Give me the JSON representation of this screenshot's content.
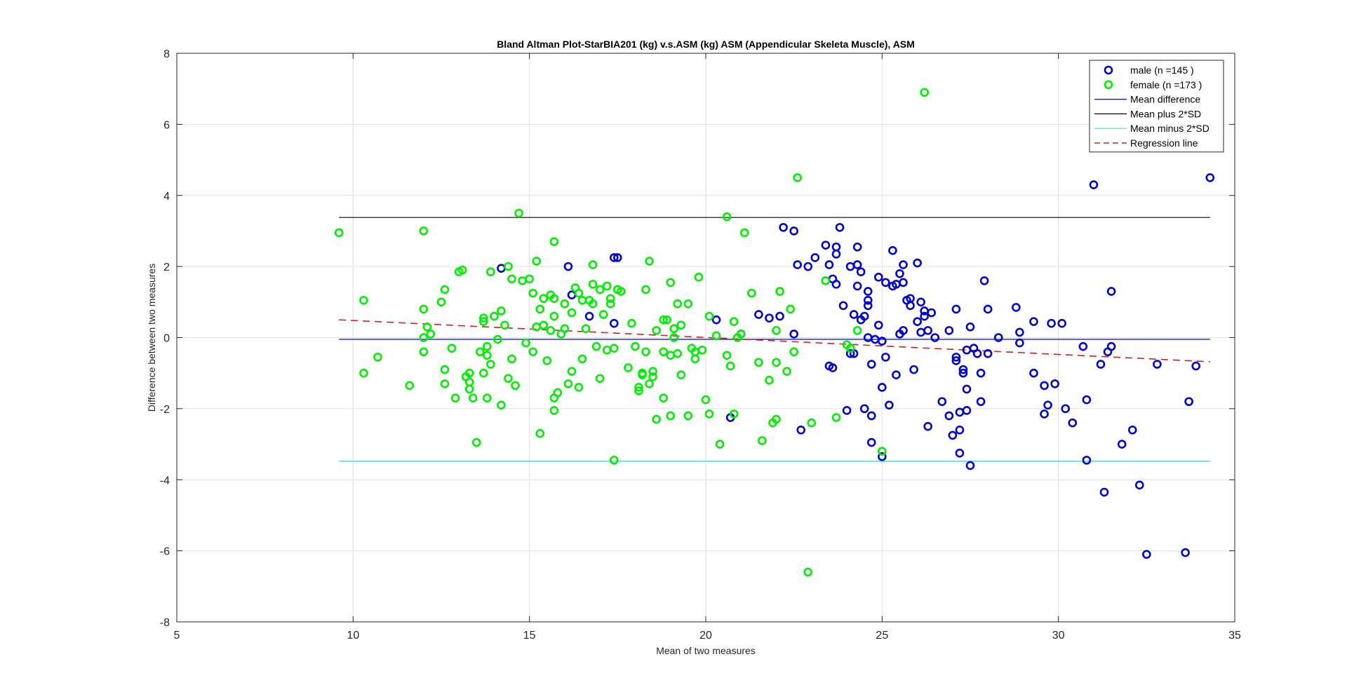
{
  "chart_data": {
    "type": "scatter",
    "title": "Bland Altman Plot-StarBIA201 (kg) v.s.ASM (kg) ASM (Appendicular Skeleta Muscle), ASM",
    "xlabel": "Mean of two measures",
    "ylabel": "Difference between two measures",
    "xlim": [
      5,
      35
    ],
    "ylim": [
      -8,
      8
    ],
    "xticks": [
      "5",
      "10",
      "15",
      "20",
      "25",
      "30",
      "35"
    ],
    "yticks": [
      "-8",
      "-6",
      "-4",
      "-2",
      "0",
      "2",
      "4",
      "6",
      "8"
    ],
    "grid": true,
    "legend_position": "top-right",
    "colors": {
      "male": "#0000cc",
      "female": "#00ee00",
      "mean_difference": "#0000ff",
      "mean_plus_2sd": "#000000",
      "mean_minus_2sd": "#33dddd",
      "regression": "#cc2222"
    },
    "legend": [
      {
        "key": "male",
        "label": "male (n =145 )",
        "kind": "marker"
      },
      {
        "key": "female",
        "label": "female (n =173 )",
        "kind": "marker"
      },
      {
        "key": "mean_difference",
        "label": "Mean difference",
        "kind": "line"
      },
      {
        "key": "mean_plus_2sd",
        "label": "Mean plus 2*SD",
        "kind": "line"
      },
      {
        "key": "mean_minus_2sd",
        "label": "Mean minus 2*SD",
        "kind": "line"
      },
      {
        "key": "regression",
        "label": "Regression line",
        "kind": "dashed"
      }
    ],
    "lines": {
      "x_range": [
        9.6,
        34.3
      ],
      "mean_difference": -0.05,
      "mean_plus_2sd": 3.38,
      "mean_minus_2sd": -3.48,
      "regression": [
        [
          9.6,
          0.5
        ],
        [
          34.3,
          -0.68
        ]
      ]
    },
    "series": [
      {
        "name": "male (n =145 )",
        "points": [
          [
            14.2,
            1.95
          ],
          [
            16.1,
            2.0
          ],
          [
            16.2,
            1.2
          ],
          [
            16.7,
            0.6
          ],
          [
            17.4,
            2.25
          ],
          [
            17.5,
            2.25
          ],
          [
            17.4,
            0.4
          ],
          [
            20.3,
            0.5
          ],
          [
            20.7,
            -2.25
          ],
          [
            21.0,
            0.1
          ],
          [
            21.5,
            0.65
          ],
          [
            21.8,
            0.55
          ],
          [
            22.1,
            0.6
          ],
          [
            22.2,
            3.1
          ],
          [
            22.5,
            3.0
          ],
          [
            22.5,
            0.1
          ],
          [
            22.6,
            2.05
          ],
          [
            22.7,
            -2.6
          ],
          [
            22.9,
            2.0
          ],
          [
            23.1,
            2.25
          ],
          [
            23.4,
            2.6
          ],
          [
            23.5,
            2.05
          ],
          [
            23.5,
            -0.8
          ],
          [
            23.6,
            -0.85
          ],
          [
            23.6,
            1.65
          ],
          [
            23.7,
            2.55
          ],
          [
            23.7,
            2.35
          ],
          [
            23.7,
            1.5
          ],
          [
            23.8,
            3.1
          ],
          [
            23.9,
            0.9
          ],
          [
            24.0,
            -2.05
          ],
          [
            24.1,
            -0.45
          ],
          [
            24.1,
            2.0
          ],
          [
            24.2,
            -0.45
          ],
          [
            24.2,
            0.65
          ],
          [
            24.3,
            2.55
          ],
          [
            24.3,
            1.45
          ],
          [
            24.3,
            2.05
          ],
          [
            24.4,
            1.85
          ],
          [
            24.4,
            0.5
          ],
          [
            24.5,
            -2.0
          ],
          [
            24.5,
            0.6
          ],
          [
            24.6,
            1.05
          ],
          [
            24.6,
            0.9
          ],
          [
            24.6,
            1.3
          ],
          [
            24.6,
            0.0
          ],
          [
            24.7,
            -2.95
          ],
          [
            24.7,
            -2.2
          ],
          [
            24.7,
            -0.75
          ],
          [
            24.8,
            -0.05
          ],
          [
            24.9,
            1.7
          ],
          [
            24.9,
            0.35
          ],
          [
            25.0,
            -3.35
          ],
          [
            25.0,
            -0.1
          ],
          [
            25.0,
            -1.4
          ],
          [
            25.1,
            1.55
          ],
          [
            25.1,
            -0.55
          ],
          [
            25.2,
            -1.9
          ],
          [
            25.3,
            2.45
          ],
          [
            25.3,
            1.45
          ],
          [
            25.4,
            1.5
          ],
          [
            25.4,
            -1.05
          ],
          [
            25.5,
            0.1
          ],
          [
            25.5,
            1.8
          ],
          [
            25.6,
            2.05
          ],
          [
            25.6,
            1.55
          ],
          [
            25.6,
            0.2
          ],
          [
            25.7,
            1.05
          ],
          [
            25.8,
            1.1
          ],
          [
            25.8,
            0.9
          ],
          [
            25.9,
            -0.9
          ],
          [
            26.0,
            0.45
          ],
          [
            26.0,
            2.1
          ],
          [
            26.1,
            0.15
          ],
          [
            26.1,
            1.0
          ],
          [
            26.2,
            0.6
          ],
          [
            26.2,
            0.75
          ],
          [
            26.3,
            -2.5
          ],
          [
            26.3,
            0.2
          ],
          [
            26.4,
            0.7
          ],
          [
            26.5,
            0.0
          ],
          [
            26.7,
            -1.8
          ],
          [
            26.9,
            -2.2
          ],
          [
            26.9,
            0.2
          ],
          [
            27.0,
            -2.75
          ],
          [
            27.1,
            -0.55
          ],
          [
            27.1,
            0.8
          ],
          [
            27.1,
            -0.65
          ],
          [
            27.2,
            -2.6
          ],
          [
            27.2,
            -3.25
          ],
          [
            27.2,
            -2.1
          ],
          [
            27.3,
            -0.9
          ],
          [
            27.3,
            -1.0
          ],
          [
            27.4,
            -2.05
          ],
          [
            27.4,
            -1.45
          ],
          [
            27.4,
            -0.35
          ],
          [
            27.5,
            -3.6
          ],
          [
            27.5,
            0.3
          ],
          [
            27.6,
            -0.3
          ],
          [
            27.7,
            -0.45
          ],
          [
            27.8,
            -1.8
          ],
          [
            27.8,
            -1.0
          ],
          [
            27.9,
            1.6
          ],
          [
            28.0,
            0.8
          ],
          [
            28.0,
            -0.45
          ],
          [
            28.3,
            0.0
          ],
          [
            28.8,
            0.85
          ],
          [
            28.9,
            0.15
          ],
          [
            28.9,
            -0.15
          ],
          [
            29.3,
            -1.0
          ],
          [
            29.3,
            0.45
          ],
          [
            29.6,
            -1.35
          ],
          [
            29.6,
            -2.15
          ],
          [
            29.7,
            -1.9
          ],
          [
            29.8,
            0.4
          ],
          [
            29.9,
            -1.3
          ],
          [
            30.1,
            0.4
          ],
          [
            30.2,
            -2.0
          ],
          [
            30.4,
            -2.4
          ],
          [
            30.7,
            -0.25
          ],
          [
            30.8,
            -1.75
          ],
          [
            30.8,
            -3.45
          ],
          [
            31.0,
            4.3
          ],
          [
            31.2,
            -0.75
          ],
          [
            31.3,
            -4.35
          ],
          [
            31.4,
            -0.4
          ],
          [
            31.5,
            -0.25
          ],
          [
            31.5,
            1.3
          ],
          [
            31.8,
            -3.0
          ],
          [
            32.1,
            -2.6
          ],
          [
            32.3,
            -4.15
          ],
          [
            32.5,
            -6.1
          ],
          [
            32.8,
            -0.75
          ],
          [
            33.6,
            -6.05
          ],
          [
            33.7,
            -1.8
          ],
          [
            33.9,
            -0.8
          ],
          [
            34.3,
            4.5
          ]
        ]
      },
      {
        "name": "female (n =173 )",
        "points": [
          [
            9.6,
            2.95
          ],
          [
            10.3,
            1.05
          ],
          [
            10.3,
            -1.0
          ],
          [
            10.7,
            -0.55
          ],
          [
            11.6,
            -1.35
          ],
          [
            12.0,
            0.8
          ],
          [
            12.0,
            -0.4
          ],
          [
            12.0,
            3.0
          ],
          [
            12.0,
            0.0
          ],
          [
            12.1,
            0.3
          ],
          [
            12.2,
            0.1
          ],
          [
            12.5,
            1.0
          ],
          [
            12.6,
            -0.9
          ],
          [
            12.6,
            -1.3
          ],
          [
            12.6,
            1.35
          ],
          [
            12.8,
            -0.3
          ],
          [
            12.9,
            -1.7
          ],
          [
            13.0,
            1.85
          ],
          [
            13.1,
            1.9
          ],
          [
            13.2,
            -1.1
          ],
          [
            13.3,
            -1.0
          ],
          [
            13.3,
            -1.25
          ],
          [
            13.3,
            -1.45
          ],
          [
            13.4,
            -1.7
          ],
          [
            13.5,
            -2.95
          ],
          [
            13.6,
            -0.4
          ],
          [
            13.7,
            0.45
          ],
          [
            13.7,
            0.55
          ],
          [
            13.7,
            -1.0
          ],
          [
            13.8,
            -1.7
          ],
          [
            13.8,
            -0.25
          ],
          [
            13.8,
            -0.5
          ],
          [
            13.9,
            1.85
          ],
          [
            13.9,
            -0.75
          ],
          [
            14.0,
            0.6
          ],
          [
            14.1,
            -0.05
          ],
          [
            14.2,
            0.75
          ],
          [
            14.2,
            -1.9
          ],
          [
            14.3,
            0.35
          ],
          [
            14.4,
            -1.15
          ],
          [
            14.4,
            2.0
          ],
          [
            14.5,
            -0.6
          ],
          [
            14.5,
            1.65
          ],
          [
            14.6,
            -1.35
          ],
          [
            14.7,
            3.5
          ],
          [
            14.8,
            1.6
          ],
          [
            14.9,
            -0.15
          ],
          [
            15.0,
            1.65
          ],
          [
            15.1,
            1.25
          ],
          [
            15.1,
            -0.4
          ],
          [
            15.2,
            2.15
          ],
          [
            15.2,
            0.3
          ],
          [
            15.3,
            0.8
          ],
          [
            15.3,
            -2.7
          ],
          [
            15.4,
            0.35
          ],
          [
            15.4,
            1.1
          ],
          [
            15.5,
            -0.65
          ],
          [
            15.6,
            1.2
          ],
          [
            15.6,
            0.2
          ],
          [
            15.7,
            2.7
          ],
          [
            15.7,
            1.1
          ],
          [
            15.7,
            0.6
          ],
          [
            15.7,
            -1.7
          ],
          [
            15.7,
            -2.05
          ],
          [
            15.8,
            -1.55
          ],
          [
            15.9,
            0.1
          ],
          [
            16.0,
            0.25
          ],
          [
            16.0,
            0.95
          ],
          [
            16.1,
            -1.3
          ],
          [
            16.2,
            0.7
          ],
          [
            16.2,
            -0.95
          ],
          [
            16.3,
            1.4
          ],
          [
            16.4,
            1.25
          ],
          [
            16.4,
            -1.4
          ],
          [
            16.5,
            1.05
          ],
          [
            16.5,
            -0.6
          ],
          [
            16.6,
            0.25
          ],
          [
            16.7,
            1.05
          ],
          [
            16.8,
            1.5
          ],
          [
            16.8,
            2.05
          ],
          [
            16.8,
            0.95
          ],
          [
            16.9,
            -0.25
          ],
          [
            17.0,
            1.35
          ],
          [
            17.0,
            -1.15
          ],
          [
            17.1,
            0.65
          ],
          [
            17.2,
            1.45
          ],
          [
            17.2,
            -0.35
          ],
          [
            17.3,
            1.1
          ],
          [
            17.3,
            0.95
          ],
          [
            17.4,
            -0.3
          ],
          [
            17.4,
            -3.45
          ],
          [
            17.5,
            1.35
          ],
          [
            17.6,
            1.3
          ],
          [
            17.8,
            -0.85
          ],
          [
            17.9,
            0.4
          ],
          [
            18.0,
            -0.25
          ],
          [
            18.1,
            -1.4
          ],
          [
            18.1,
            -1.5
          ],
          [
            18.2,
            -1.0
          ],
          [
            18.2,
            -1.05
          ],
          [
            18.3,
            1.35
          ],
          [
            18.3,
            -0.4
          ],
          [
            18.4,
            2.15
          ],
          [
            18.4,
            -1.3
          ],
          [
            18.5,
            -1.1
          ],
          [
            18.5,
            -0.95
          ],
          [
            18.6,
            0.2
          ],
          [
            18.6,
            -2.3
          ],
          [
            18.8,
            0.5
          ],
          [
            18.8,
            -0.4
          ],
          [
            18.8,
            -1.7
          ],
          [
            18.9,
            0.5
          ],
          [
            19.0,
            -0.5
          ],
          [
            19.0,
            1.55
          ],
          [
            19.0,
            -2.2
          ],
          [
            19.1,
            0.0
          ],
          [
            19.1,
            0.25
          ],
          [
            19.2,
            -0.45
          ],
          [
            19.2,
            0.95
          ],
          [
            19.3,
            0.35
          ],
          [
            19.3,
            -1.05
          ],
          [
            19.5,
            -2.2
          ],
          [
            19.5,
            0.95
          ],
          [
            19.6,
            -0.3
          ],
          [
            19.7,
            -0.4
          ],
          [
            19.7,
            -0.6
          ],
          [
            19.8,
            1.7
          ],
          [
            19.9,
            -0.35
          ],
          [
            20.0,
            -1.75
          ],
          [
            20.1,
            0.6
          ],
          [
            20.1,
            -2.15
          ],
          [
            20.3,
            0.05
          ],
          [
            20.4,
            -3.0
          ],
          [
            20.6,
            3.4
          ],
          [
            20.6,
            -0.5
          ],
          [
            20.7,
            -0.8
          ],
          [
            20.8,
            0.45
          ],
          [
            20.8,
            -2.15
          ],
          [
            20.9,
            0.0
          ],
          [
            21.0,
            0.1
          ],
          [
            21.1,
            2.95
          ],
          [
            21.3,
            1.25
          ],
          [
            21.5,
            -0.7
          ],
          [
            21.6,
            -2.9
          ],
          [
            21.8,
            -1.2
          ],
          [
            21.9,
            -2.4
          ],
          [
            22.0,
            0.2
          ],
          [
            22.0,
            -2.3
          ],
          [
            22.0,
            -0.7
          ],
          [
            22.1,
            1.3
          ],
          [
            22.3,
            -0.95
          ],
          [
            22.4,
            0.8
          ],
          [
            22.5,
            -0.4
          ],
          [
            22.6,
            4.5
          ],
          [
            22.9,
            -6.6
          ],
          [
            23.0,
            -2.4
          ],
          [
            23.4,
            1.6
          ],
          [
            23.7,
            -2.25
          ],
          [
            24.0,
            -0.2
          ],
          [
            24.1,
            -0.3
          ],
          [
            24.3,
            0.2
          ],
          [
            25.0,
            -3.2
          ],
          [
            26.2,
            6.9
          ]
        ]
      }
    ]
  }
}
